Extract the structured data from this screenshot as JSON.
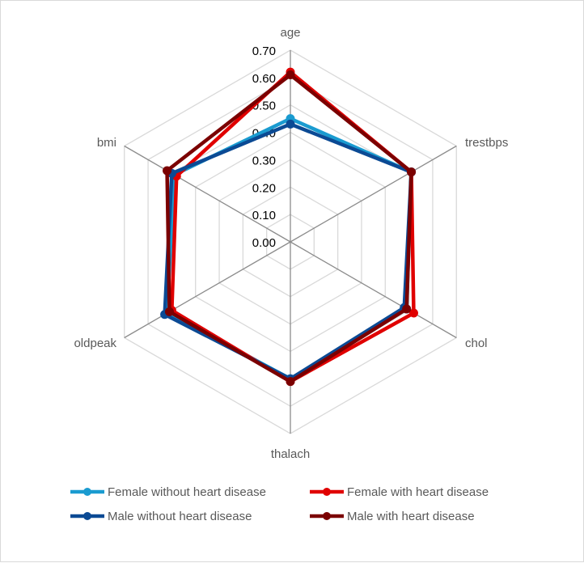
{
  "chart_data": {
    "type": "radar",
    "categories": [
      "age",
      "trestbps",
      "chol",
      "thalach",
      "oldpeak",
      "bmi"
    ],
    "rlim": [
      0,
      0.7
    ],
    "ticks": [
      "0.00",
      "0.10",
      "0.20",
      "0.30",
      "0.40",
      "0.50",
      "0.60",
      "0.70"
    ],
    "tick_values": [
      0,
      0.1,
      0.2,
      0.3,
      0.4,
      0.5,
      0.6,
      0.7
    ],
    "grid": true,
    "legend_position": "bottom",
    "series": [
      {
        "name": "Female without heart disease",
        "color": "#1a9bd0",
        "values": [
          0.45,
          0.51,
          0.49,
          0.5,
          0.52,
          0.49
        ]
      },
      {
        "name": "Female with heart disease",
        "color": "#e00000",
        "values": [
          0.62,
          0.51,
          0.52,
          0.51,
          0.5,
          0.48
        ]
      },
      {
        "name": "Male without heart disease",
        "color": "#0b4a94",
        "values": [
          0.43,
          0.51,
          0.48,
          0.5,
          0.53,
          0.5
        ]
      },
      {
        "name": "Male with heart disease",
        "color": "#7b0000",
        "values": [
          0.61,
          0.51,
          0.49,
          0.51,
          0.51,
          0.52
        ]
      }
    ]
  }
}
